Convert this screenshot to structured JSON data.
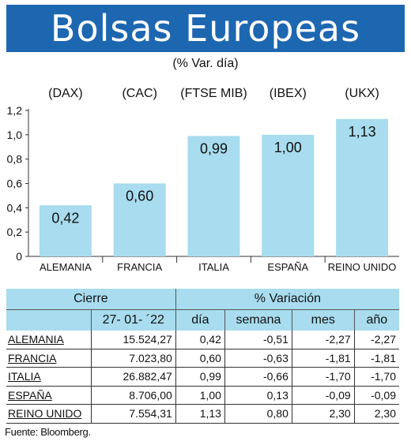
{
  "title": "Bolsas Europeas",
  "subtitle": "(% Var. día)",
  "chart_data": {
    "type": "bar",
    "categories": [
      "ALEMANIA",
      "FRANCIA",
      "ITALIA",
      "ESPAÑA",
      "REINO UNIDO"
    ],
    "index_labels": [
      "(DAX)",
      "(CAC)",
      "(FTSE MIB)",
      "(IBEX)",
      "(UKX)"
    ],
    "values": [
      0.42,
      0.6,
      0.99,
      1.0,
      1.13
    ],
    "value_labels": [
      "0,42",
      "0,60",
      "0,99",
      "1,00",
      "1,13"
    ],
    "yticks": [
      "0",
      "0,2",
      "0,4",
      "0,6",
      "0,8",
      "1,0",
      "1,2"
    ],
    "ylim": [
      0,
      1.2
    ],
    "grid": false,
    "bar_color": "#a8dcee"
  },
  "table": {
    "header_cierre": "Cierre",
    "header_variacion": "% Variación",
    "date": "27- 01- ´22",
    "col_dia": "día",
    "col_semana": "semana",
    "col_mes": "mes",
    "col_anio": "año",
    "rows": [
      [
        "ALEMANIA",
        "15.524,27",
        "0,42",
        "-0,51",
        "-2,27",
        "-2,27"
      ],
      [
        "FRANCIA",
        "7.023,80",
        "0,60",
        "-0,63",
        "-1,81",
        "-1,81"
      ],
      [
        "ITALIA",
        "26.882,47",
        "0,99",
        "-0,66",
        "-1,70",
        "-1,70"
      ],
      [
        "ESPAÑA",
        "8.706,00",
        "1,00",
        "0,13",
        "-0,09",
        "-0,09"
      ],
      [
        "REINO UNIDO",
        "7.554,31",
        "1,13",
        "0,80",
        "2,30",
        "2,30"
      ]
    ]
  },
  "source": "Fuente: Bloomberg.",
  "colors": {
    "banner": "#1d67b1",
    "bars": "#a8dcee",
    "header": "#a8dcee"
  }
}
